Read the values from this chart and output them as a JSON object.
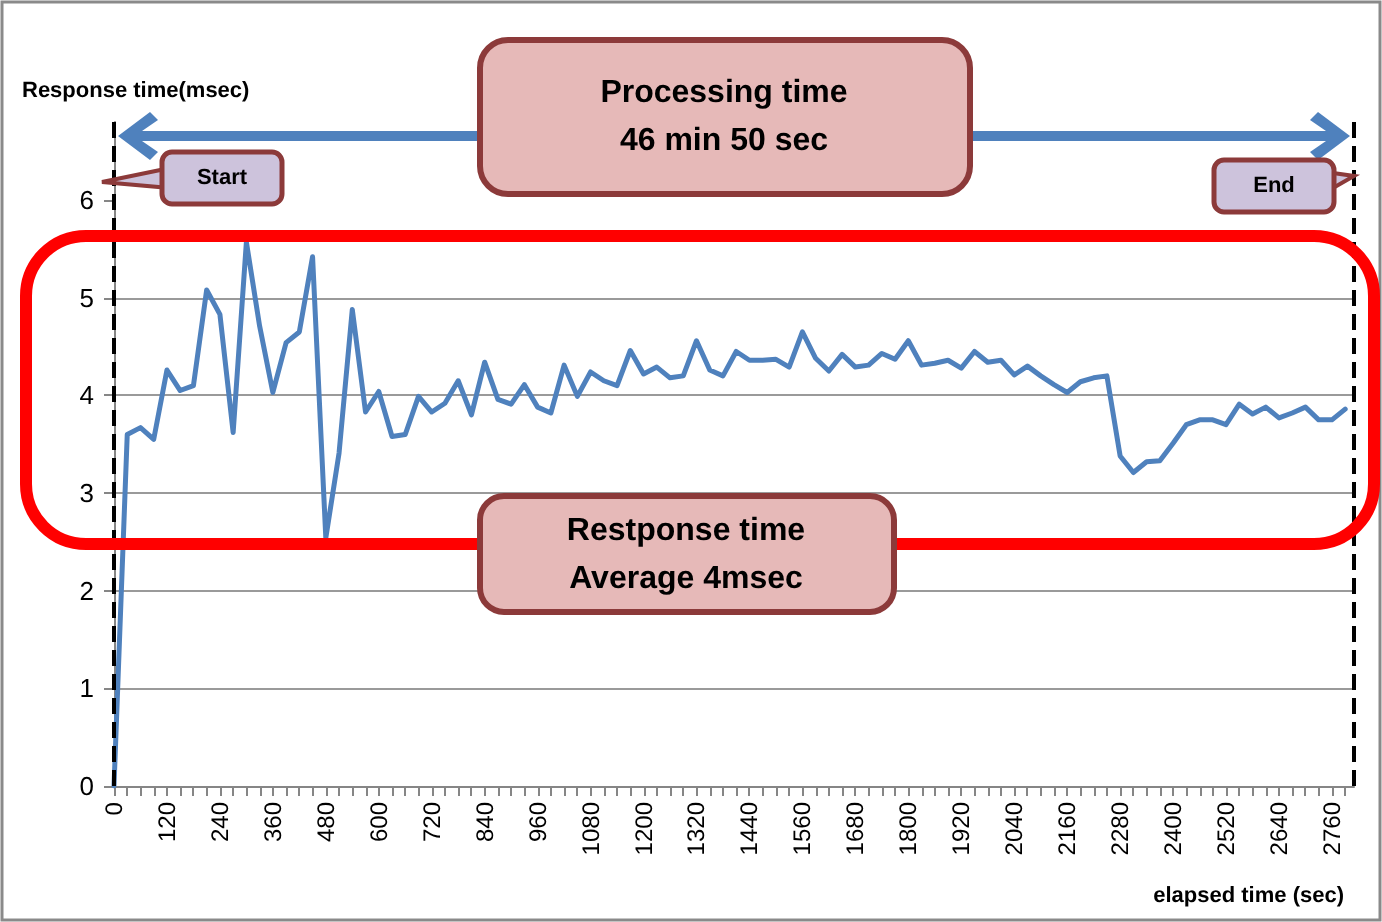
{
  "chart_data": {
    "type": "line",
    "xlabel": "elapsed time (sec)",
    "ylabel": "Response time(msec)",
    "annotations": [
      "Processing time\n46 min 50 sec",
      "Restponse time\nAverage 4msec"
    ],
    "x": [
      0,
      30,
      60,
      90,
      120,
      150,
      180,
      210,
      240,
      270,
      300,
      330,
      360,
      390,
      420,
      450,
      480,
      510,
      540,
      570,
      600,
      630,
      660,
      690,
      720,
      750,
      780,
      810,
      840,
      870,
      900,
      930,
      960,
      990,
      1020,
      1050,
      1080,
      1110,
      1140,
      1170,
      1200,
      1230,
      1260,
      1290,
      1320,
      1350,
      1380,
      1410,
      1440,
      1470,
      1500,
      1530,
      1560,
      1590,
      1620,
      1650,
      1680,
      1710,
      1740,
      1770,
      1800,
      1830,
      1860,
      1890,
      1920,
      1950,
      1980,
      2010,
      2040,
      2070,
      2100,
      2130,
      2160,
      2190,
      2220,
      2250,
      2280,
      2310,
      2340,
      2370,
      2400,
      2430,
      2460,
      2490,
      2520,
      2550,
      2580,
      2610,
      2640,
      2670,
      2700,
      2730,
      2760,
      2790
    ],
    "series": [
      {
        "color": "#4f81bd",
        "values": [
          0,
          3.6,
          3.67,
          3.55,
          4.26,
          4.05,
          4.1,
          5.08,
          4.83,
          3.62,
          5.57,
          4.71,
          4.03,
          4.54,
          4.65,
          5.42,
          2.54,
          3.41,
          4.88,
          3.83,
          4.04,
          3.58,
          3.6,
          3.99,
          3.83,
          3.92,
          4.15,
          3.8,
          4.34,
          3.96,
          3.91,
          4.11,
          3.88,
          3.82,
          4.31,
          3.99,
          4.24,
          4.15,
          4.1,
          4.46,
          4.22,
          4.29,
          4.18,
          4.2,
          4.56,
          4.26,
          4.2,
          4.45,
          4.36,
          4.36,
          4.37,
          4.29,
          4.65,
          4.38,
          4.25,
          4.42,
          4.29,
          4.31,
          4.43,
          4.37,
          4.56,
          4.31,
          4.33,
          4.36,
          4.28,
          4.45,
          4.34,
          4.36,
          4.21,
          4.3,
          4.2,
          4.11,
          4.03,
          4.14,
          4.18,
          4.2,
          3.38,
          3.21,
          3.32,
          3.33,
          3.51,
          3.7,
          3.75,
          3.75,
          3.7,
          3.91,
          3.81,
          3.88,
          3.77,
          3.82,
          3.88,
          3.75,
          3.75,
          3.86
        ]
      }
    ],
    "xlim": [
      0,
      2810
    ],
    "ylim": [
      0,
      6.8
    ],
    "yticks": [
      0,
      1,
      2,
      3,
      4,
      5,
      6
    ],
    "xticks": [
      0,
      {
        "value": 30,
        "label": null
      },
      {
        "value": 60,
        "label": null
      },
      {
        "value": 90,
        "label": null
      },
      120,
      {
        "value": 150,
        "label": null
      },
      {
        "value": 180,
        "label": null
      },
      {
        "value": 210,
        "label": null
      },
      240,
      {
        "value": 270,
        "label": null
      },
      {
        "value": 300,
        "label": null
      },
      {
        "value": 330,
        "label": null
      },
      360,
      {
        "value": 390,
        "label": null
      },
      {
        "value": 420,
        "label": null
      },
      {
        "value": 450,
        "label": null
      },
      480,
      {
        "value": 510,
        "label": null
      },
      {
        "value": 540,
        "label": null
      },
      {
        "value": 570,
        "label": null
      },
      600,
      {
        "value": 630,
        "label": null
      },
      {
        "value": 660,
        "label": null
      },
      {
        "value": 690,
        "label": null
      },
      720,
      {
        "value": 750,
        "label": null
      },
      {
        "value": 780,
        "label": null
      },
      {
        "value": 810,
        "label": null
      },
      840,
      {
        "value": 870,
        "label": null
      },
      {
        "value": 900,
        "label": null
      },
      {
        "value": 930,
        "label": null
      },
      960,
      {
        "value": 990,
        "label": null
      },
      {
        "value": 1020,
        "label": null
      },
      {
        "value": 1050,
        "label": null
      },
      1080,
      {
        "value": 1110,
        "label": null
      },
      {
        "value": 1140,
        "label": null
      },
      {
        "value": 1170,
        "label": null
      },
      1200,
      {
        "value": 1230,
        "label": null
      },
      {
        "value": 1260,
        "label": null
      },
      {
        "value": 1290,
        "label": null
      },
      1320,
      {
        "value": 1350,
        "label": null
      },
      {
        "value": 1380,
        "label": null
      },
      {
        "value": 1410,
        "label": null
      },
      1440,
      {
        "value": 1470,
        "label": null
      },
      {
        "value": 1500,
        "label": null
      },
      {
        "value": 1530,
        "label": null
      },
      1560,
      {
        "value": 1590,
        "label": null
      },
      {
        "value": 1620,
        "label": null
      },
      {
        "value": 1650,
        "label": null
      },
      1680,
      {
        "value": 1710,
        "label": null
      },
      {
        "value": 1740,
        "label": null
      },
      {
        "value": 1770,
        "label": null
      },
      1800,
      {
        "value": 1830,
        "label": null
      },
      {
        "value": 1860,
        "label": null
      },
      {
        "value": 1890,
        "label": null
      },
      1920,
      {
        "value": 1950,
        "label": null
      },
      {
        "value": 1980,
        "label": null
      },
      {
        "value": 2010,
        "label": null
      },
      2040,
      {
        "value": 2070,
        "label": null
      },
      {
        "value": 2100,
        "label": null
      },
      {
        "value": 2130,
        "label": null
      },
      2160,
      {
        "value": 2190,
        "label": null
      },
      {
        "value": 2220,
        "label": null
      },
      {
        "value": 2250,
        "label": null
      },
      2280,
      {
        "value": 2310,
        "label": null
      },
      {
        "value": 2340,
        "label": null
      },
      {
        "value": 2370,
        "label": null
      },
      2400,
      {
        "value": 2430,
        "label": null
      },
      {
        "value": 2460,
        "label": null
      },
      {
        "value": 2490,
        "label": null
      },
      2520,
      {
        "value": 2550,
        "label": null
      },
      {
        "value": 2580,
        "label": null
      },
      {
        "value": 2610,
        "label": null
      },
      2640,
      {
        "value": 2670,
        "label": null
      },
      {
        "value": 2700,
        "label": null
      },
      {
        "value": 2730,
        "label": null
      },
      2760,
      {
        "value": 2790,
        "label": null
      }
    ],
    "ref_lines": [
      {
        "axis": "x",
        "value": 0,
        "label": "Start",
        "color": "#000000",
        "line_style": "dashed"
      },
      {
        "axis": "x",
        "value": 2810,
        "label": "End",
        "color": "#000000",
        "line_style": "dashed"
      }
    ],
    "grid": "y",
    "marker": "none",
    "line_style": "solid"
  }
}
